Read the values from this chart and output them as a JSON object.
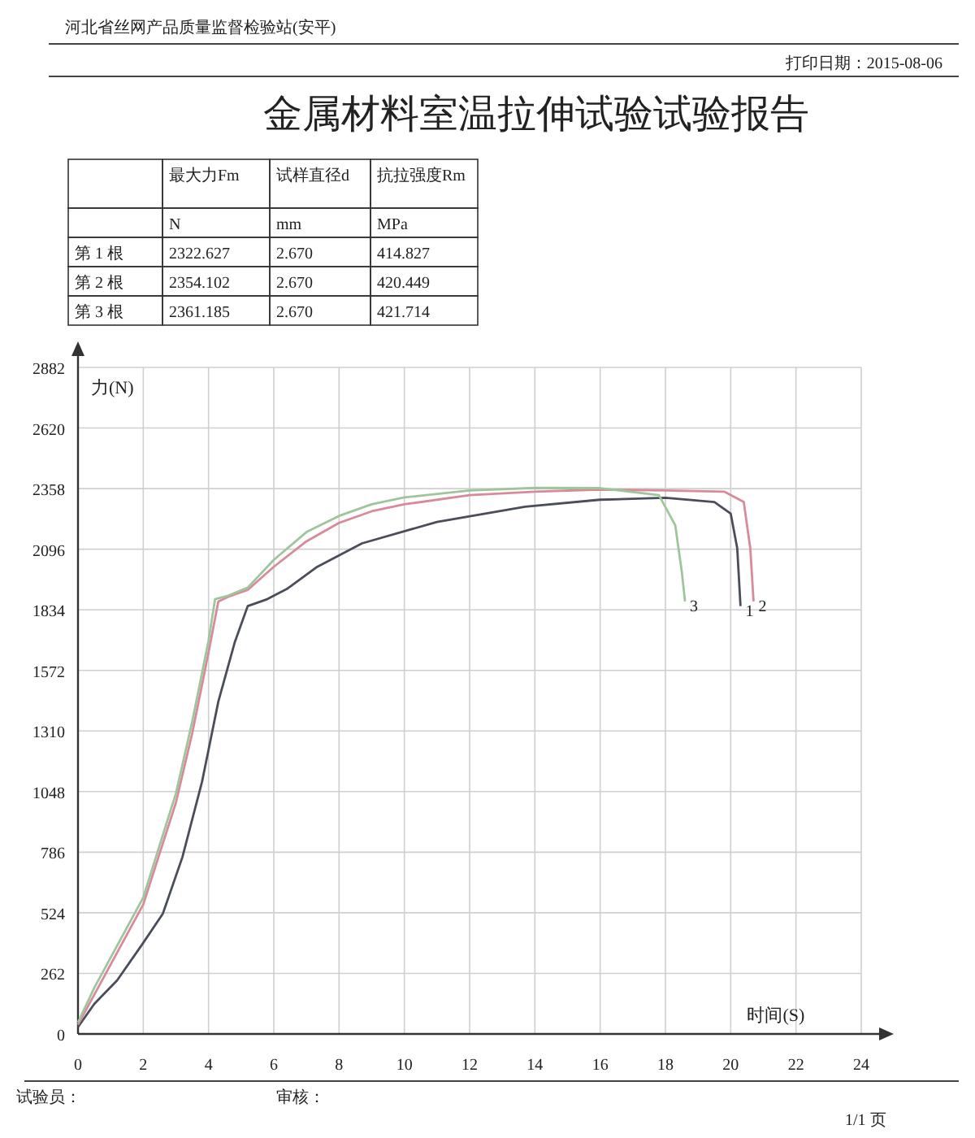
{
  "chart_data": [
    {
      "type": "other",
      "title": "金属材料室温拉伸试验试验报告",
      "subtitle": "河北省丝网产品质量监督检验站(安平)",
      "annotations": [
        "打印日期：2015-08-06",
        null,
        "最大力Fm",
        "试样直径d",
        "抗拉强度Rm",
        null,
        "N",
        "mm",
        "MPa",
        "第 1 根",
        "2322.627",
        "2.670",
        "414.827",
        "第 2 根",
        "2354.102",
        "2.670",
        "420.449",
        "第 3 根",
        "2361.185",
        "2.670",
        "421.714"
      ]
    },
    {
      "type": "line",
      "xlabel": "时间(S)",
      "ylabel": "力(N)",
      "xlim": [
        0,
        24
      ],
      "ylim": [
        0,
        2882
      ],
      "xticks": [
        0,
        2,
        4,
        6,
        8,
        10,
        12,
        14,
        16,
        18,
        20,
        22,
        24
      ],
      "yticks": [
        0,
        262,
        524,
        786,
        1048,
        1310,
        1572,
        1834,
        2096,
        2358,
        2620,
        2882
      ],
      "grid": true,
      "marker": "none",
      "line_style": "solid",
      "series": [
        {
          "name": "1",
          "color": "#4a4e5a",
          "x": [
            0,
            0.5,
            1.2,
            2,
            2.6,
            3.2,
            3.8,
            4.3,
            4.8,
            5.2,
            5.8,
            6.4,
            7.3,
            8.7,
            11,
            13.7,
            16,
            18,
            19.5,
            20,
            20.2,
            20.3
          ],
          "values": [
            30,
            130,
            232,
            394,
            520,
            765,
            1090,
            1437,
            1692,
            1850,
            1880,
            1924,
            2017,
            2121,
            2214,
            2280,
            2310,
            2318,
            2300,
            2250,
            2100,
            1850
          ]
        },
        {
          "name": "2",
          "color": "#d98a9a",
          "x": [
            0,
            0.5,
            1,
            2,
            3,
            3.5,
            4,
            4.3,
            4.6,
            5.2,
            6,
            7,
            8,
            9,
            10,
            12,
            14,
            16,
            18,
            19.8,
            20.4,
            20.6,
            20.7
          ],
          "values": [
            40,
            170,
            300,
            560,
            1000,
            1300,
            1650,
            1870,
            1890,
            1920,
            2020,
            2130,
            2210,
            2260,
            2290,
            2330,
            2345,
            2354,
            2350,
            2345,
            2300,
            2100,
            1870
          ]
        },
        {
          "name": "3",
          "color": "#9fc59a",
          "x": [
            0,
            0.5,
            1,
            2,
            3,
            3.5,
            4,
            4.2,
            4.6,
            5.2,
            6,
            7,
            8,
            9,
            10,
            12,
            14,
            16,
            17.8,
            18.3,
            18.5,
            18.6
          ],
          "values": [
            50,
            200,
            330,
            590,
            1040,
            1350,
            1700,
            1880,
            1895,
            1930,
            2050,
            2170,
            2240,
            2290,
            2320,
            2350,
            2361,
            2360,
            2330,
            2200,
            2000,
            1870
          ]
        }
      ],
      "annotations": [
        "试验员：",
        "审核：",
        "1/1 页"
      ]
    }
  ]
}
